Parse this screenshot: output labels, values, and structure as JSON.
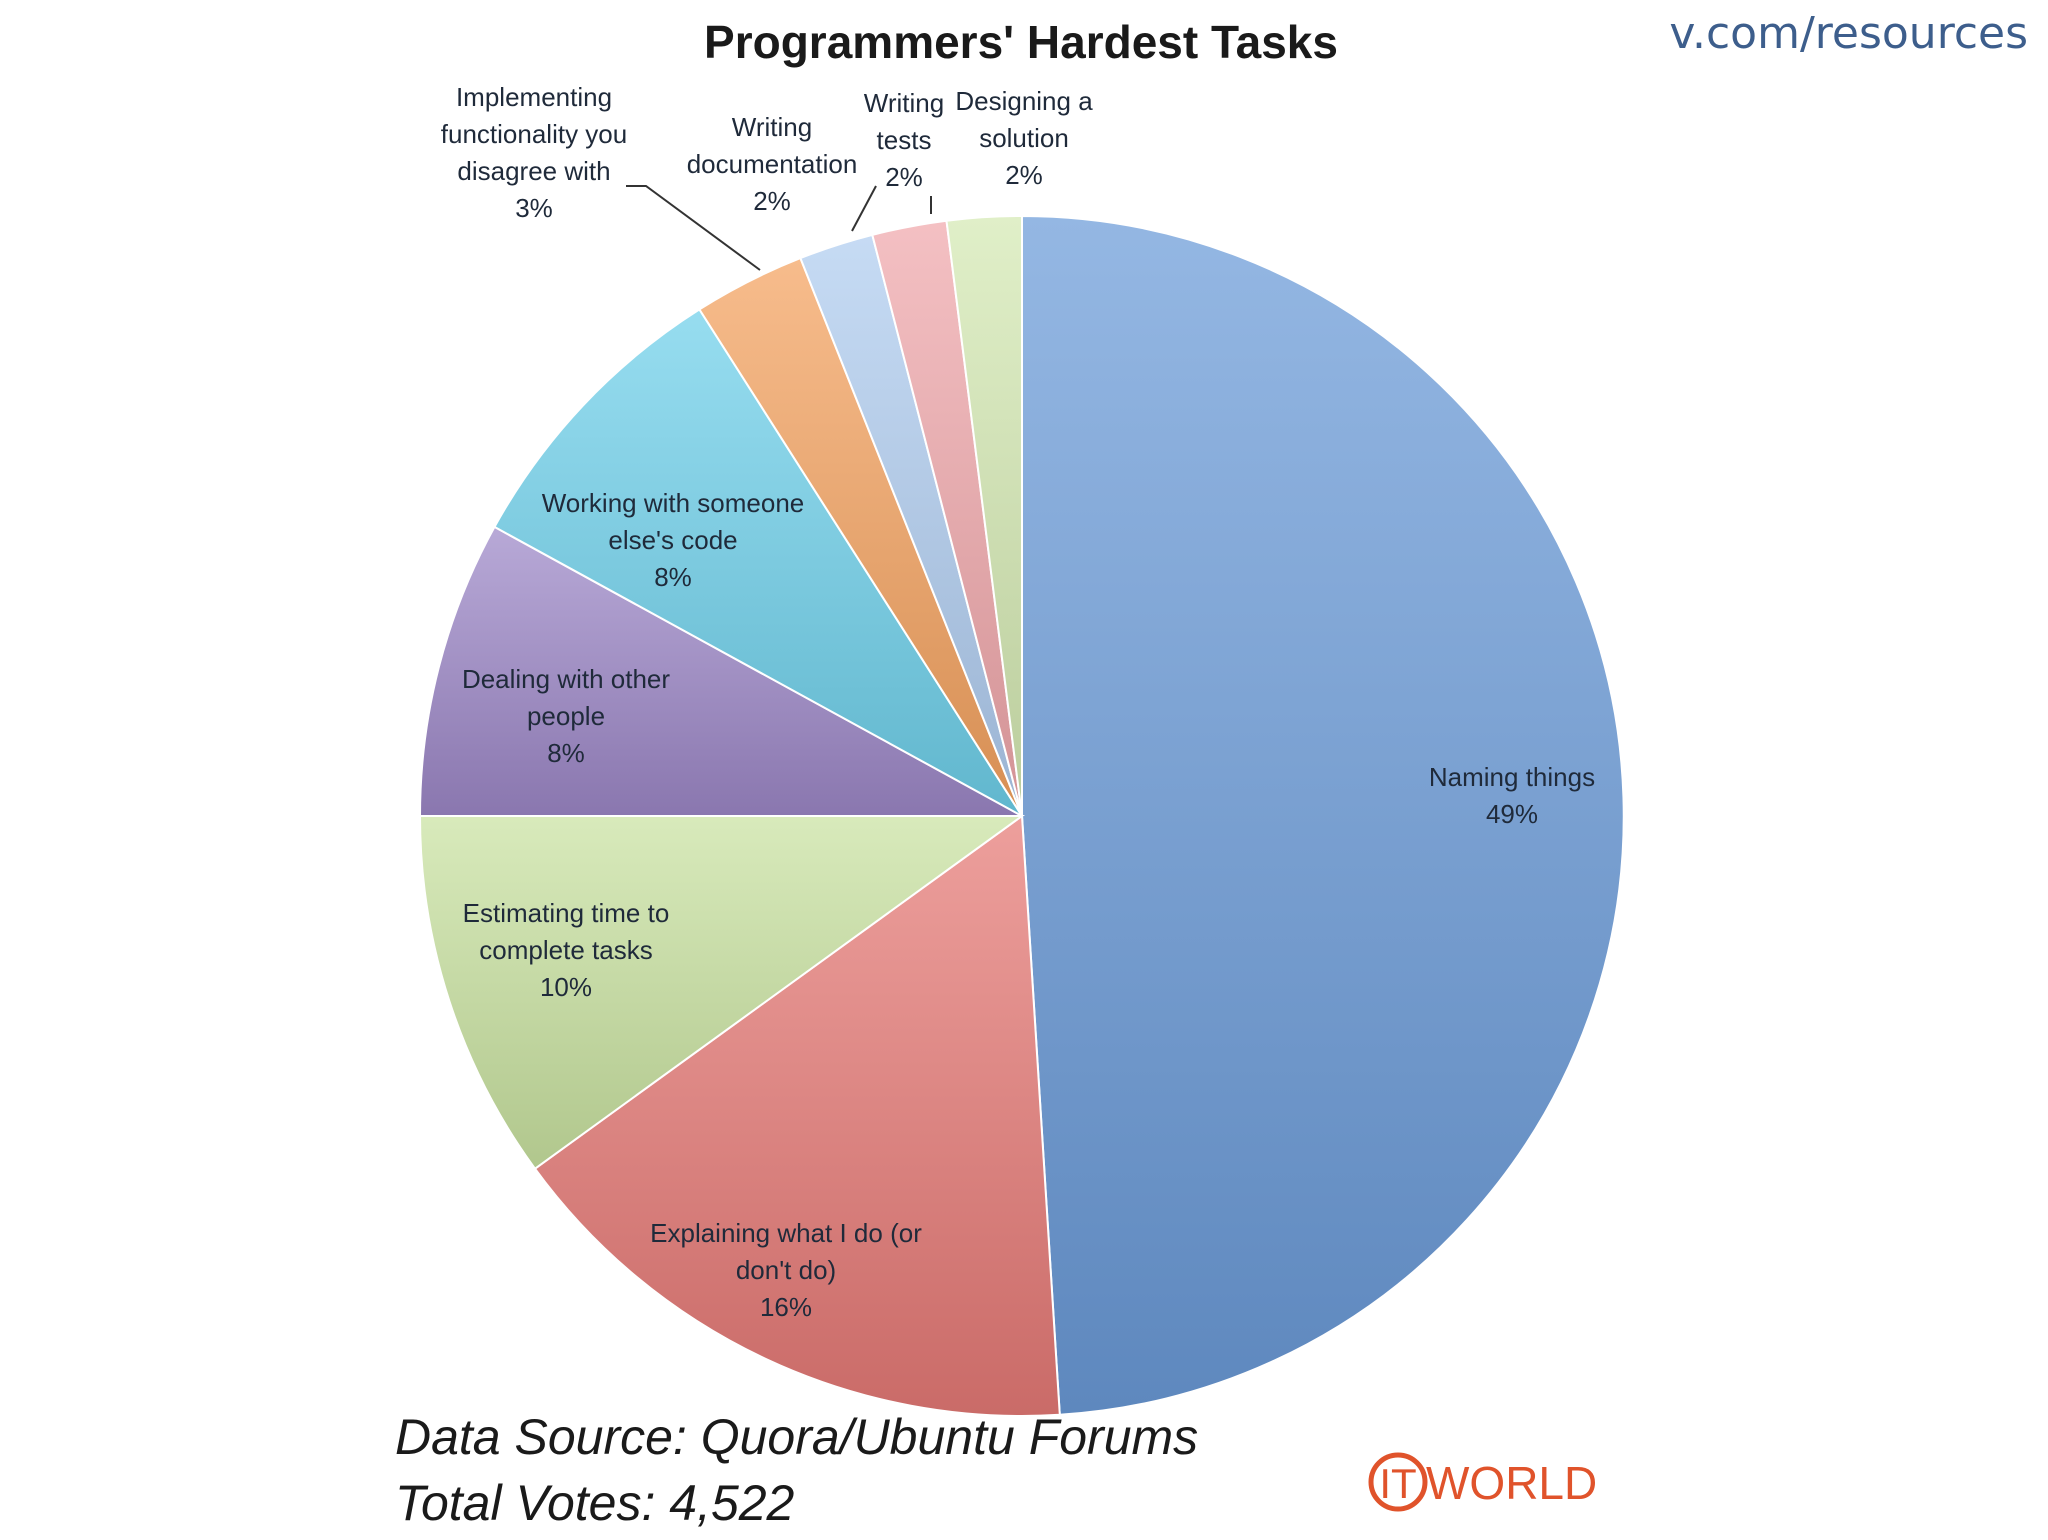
{
  "url_text": "v.com/resources",
  "footer": {
    "source": "Data Source: Quora/Ubuntu Forums",
    "votes": "Total Votes: 4,522"
  },
  "logo": {
    "it": "IT",
    "world": "WORLD",
    "color": "#e0532b"
  },
  "chart_data": {
    "type": "pie",
    "title": "Programmers' Hardest Tasks",
    "start_angle_deg": 0,
    "direction": "clockwise",
    "slices": [
      {
        "label": [
          "Naming things"
        ],
        "pct_label": "49%",
        "value": 49,
        "color": "#6b9bd8"
      },
      {
        "label": [
          "Explaining what I do (or",
          "don't do)"
        ],
        "pct_label": "16%",
        "value": 16,
        "color": "#e67a76"
      },
      {
        "label": [
          "Estimating time to",
          "complete tasks"
        ],
        "pct_label": "10%",
        "value": 10,
        "color": "#c9e2a0"
      },
      {
        "label": [
          "Dealing with other",
          "people"
        ],
        "pct_label": "8%",
        "value": 8,
        "color": "#9d87c7"
      },
      {
        "label": [
          "Working with someone",
          "else's code"
        ],
        "pct_label": "8%",
        "value": 8,
        "color": "#6ed0ea"
      },
      {
        "label": [
          "Implementing",
          "functionality you",
          "disagree with"
        ],
        "pct_label": "3%",
        "value": 3,
        "color": "#f4a25f"
      },
      {
        "label": [
          "Writing",
          "documentation"
        ],
        "pct_label": "2%",
        "value": 2,
        "color": "#b0cdf0"
      },
      {
        "label": [
          "Writing",
          "tests"
        ],
        "pct_label": "2%",
        "value": 2,
        "color": "#f0a7ab"
      },
      {
        "label": [
          "Designing a",
          "solution"
        ],
        "pct_label": "2%",
        "value": 2,
        "color": "#d4e9b2"
      }
    ]
  }
}
